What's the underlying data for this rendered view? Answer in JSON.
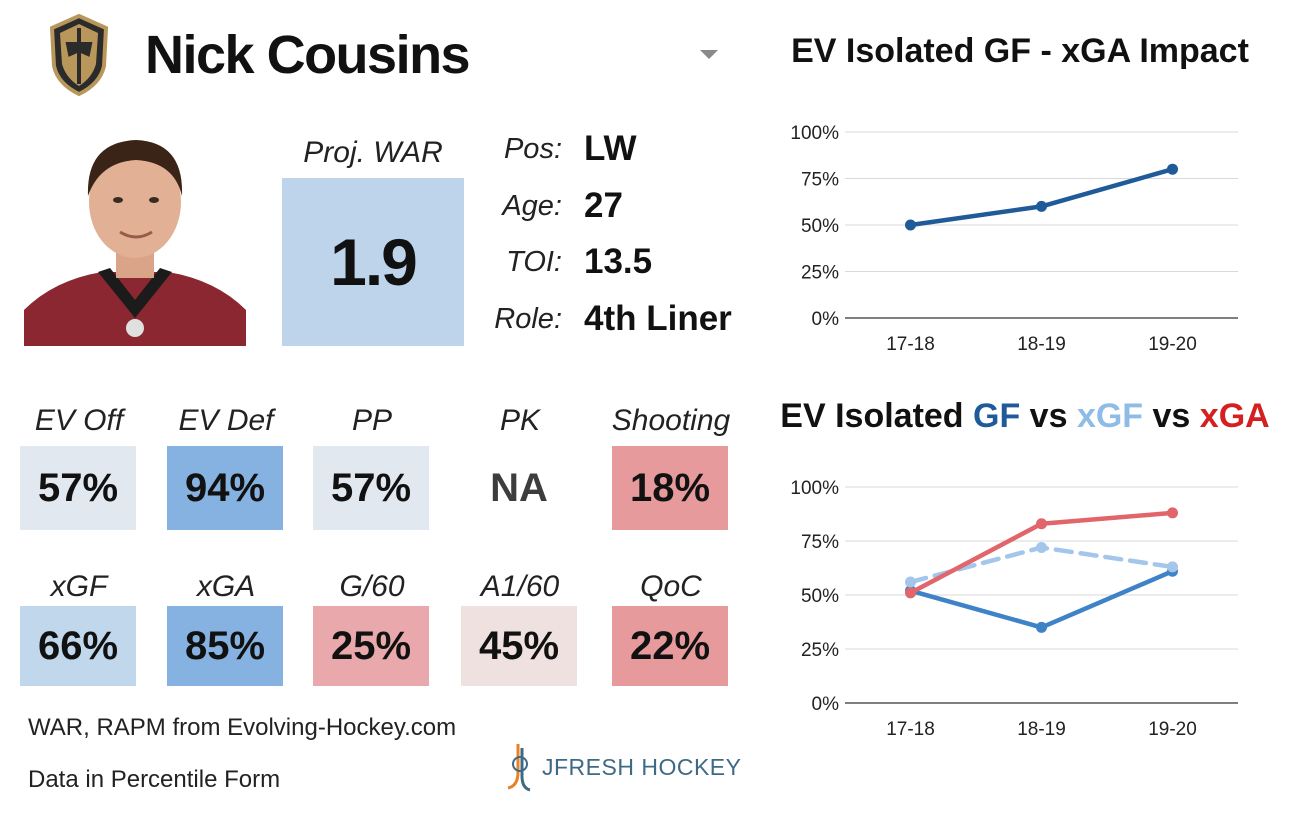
{
  "player": {
    "name": "Nick Cousins",
    "team_logo": "vegas-golden-knights-helmet-logo",
    "photo": "player-headshot"
  },
  "projection": {
    "label": "Proj. WAR",
    "value": "1.9"
  },
  "info": [
    {
      "label": "Pos:",
      "value": "LW"
    },
    {
      "label": "Age:",
      "value": "27"
    },
    {
      "label": "TOI:",
      "value": "13.5"
    },
    {
      "label": "Role:",
      "value": "4th Liner"
    }
  ],
  "stats_row1": [
    {
      "label": "EV Off",
      "value": "57%",
      "color": "#e1e8f0"
    },
    {
      "label": "EV Def",
      "value": "94%",
      "color": "#85b2e1"
    },
    {
      "label": "PP",
      "value": "57%",
      "color": "#e1e8f0"
    },
    {
      "label": "PK",
      "value": "NA",
      "color": "#ffffff"
    },
    {
      "label": "Shooting",
      "value": "18%",
      "color": "#e69a9c"
    }
  ],
  "stats_row2": [
    {
      "label": "xGF",
      "value": "66%",
      "color": "#c0d7ec"
    },
    {
      "label": "xGA",
      "value": "85%",
      "color": "#85b2e1"
    },
    {
      "label": "G/60",
      "value": "25%",
      "color": "#e9a9ac"
    },
    {
      "label": "A1/60",
      "value": "45%",
      "color": "#f0e1e1"
    },
    {
      "label": "QoC",
      "value": "22%",
      "color": "#e69a9c"
    }
  ],
  "footer": {
    "source": "WAR, RAPM from  Evolving-Hockey.com",
    "note": "Data in Percentile Form",
    "brand": "JFRESH HOCKEY"
  },
  "chart_titles": {
    "chart1": "EV Isolated GF - xGA Impact",
    "chart2_parts": [
      {
        "text": "EV Isolated ",
        "color": "#111111"
      },
      {
        "text": "GF",
        "color": "#1f5a99"
      },
      {
        "text": " vs ",
        "color": "#111111"
      },
      {
        "text": "xGF",
        "color": "#8fbce6"
      },
      {
        "text": " vs ",
        "color": "#111111"
      },
      {
        "text": "xGA",
        "color": "#d42020"
      }
    ]
  },
  "chart_data": [
    {
      "type": "line",
      "title": "EV Isolated GF - xGA Impact",
      "x": [
        "17-18",
        "18-19",
        "19-20"
      ],
      "yticks": [
        "0%",
        "25%",
        "50%",
        "75%",
        "100%"
      ],
      "ylim": [
        0,
        100
      ],
      "grid": true,
      "series": [
        {
          "values": [
            50,
            60,
            80
          ],
          "color": "#1f5a99",
          "dashed": false
        }
      ]
    },
    {
      "type": "line",
      "title": "EV Isolated GF vs xGF vs xGA",
      "x": [
        "17-18",
        "18-19",
        "19-20"
      ],
      "yticks": [
        "0%",
        "25%",
        "50%",
        "75%",
        "100%"
      ],
      "ylim": [
        0,
        100
      ],
      "grid": true,
      "series": [
        {
          "name": "GF",
          "values": [
            52,
            35,
            61
          ],
          "color": "#3e82c7",
          "dashed": false
        },
        {
          "name": "xGF",
          "values": [
            56,
            72,
            63
          ],
          "color": "#a3c6ea",
          "dashed": true
        },
        {
          "name": "xGA",
          "values": [
            51,
            83,
            88
          ],
          "color": "#e0666b",
          "dashed": false
        }
      ]
    }
  ]
}
